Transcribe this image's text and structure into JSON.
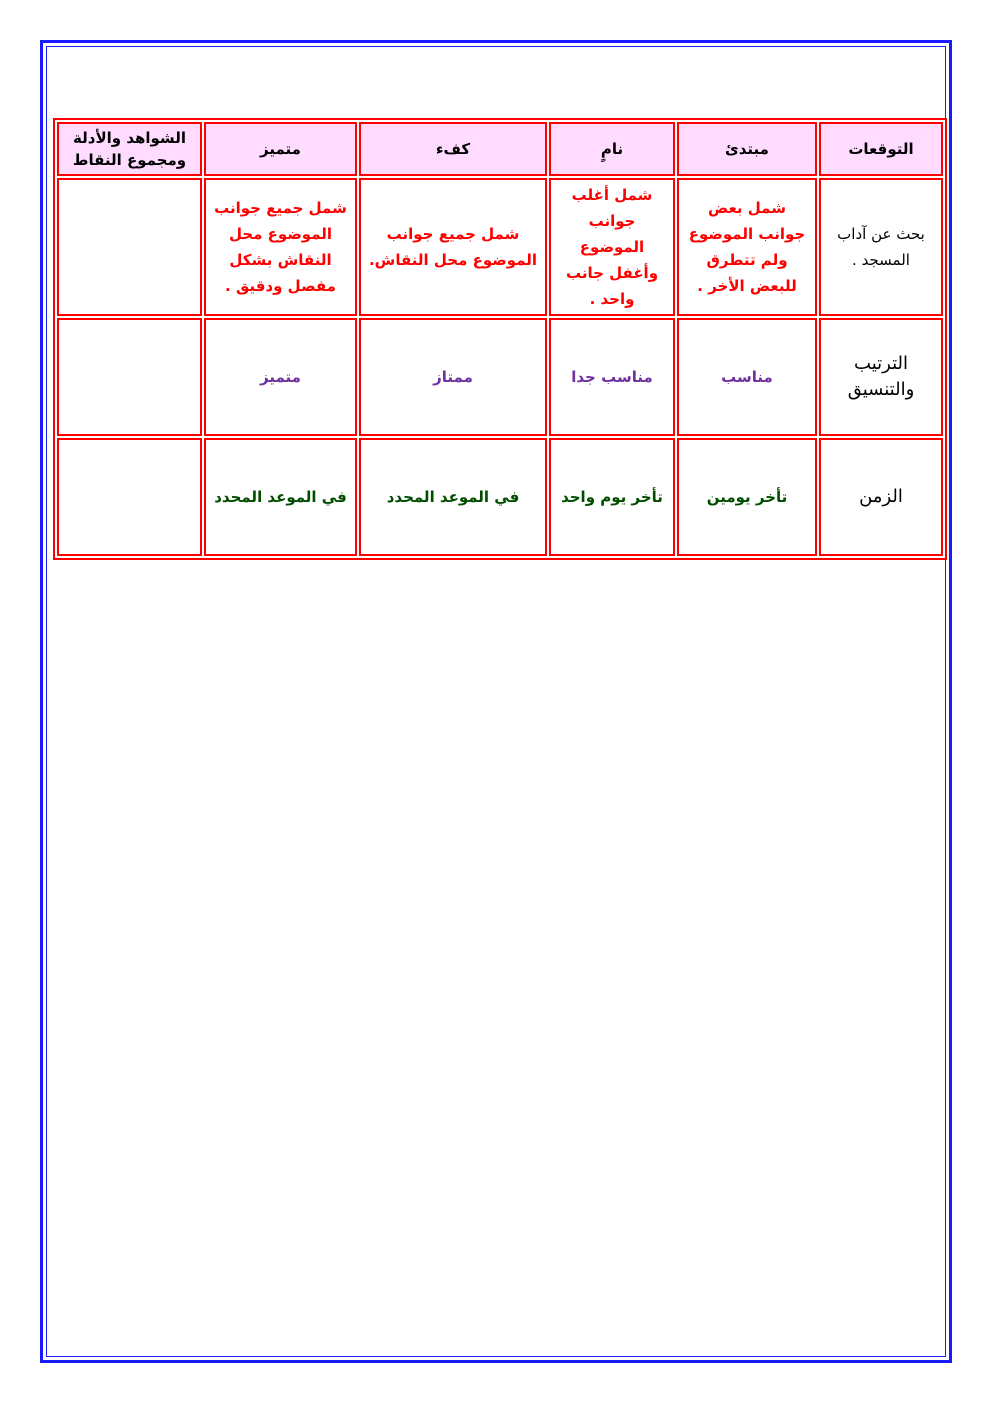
{
  "table": {
    "headers": [
      "التوقعات",
      "مبتدئ",
      "نامٍ",
      "كفء",
      "متميز",
      "الشواهد والأدلة ومجموع النقاط"
    ],
    "rows": [
      {
        "criterion": "بحث عن آداب المسجد .",
        "cells": [
          "شمل بعض جوانب الموضوع ولم تتطرق للبعض الأخر .",
          "شمل أغلب جوانب الموضوع وأغفل جانب واحد .",
          "شمل جميع جوانب الموضوع محل النقاش.",
          "شمل جميع جوانب الموضوع محل النقاش بشكل مفصل ودقيق ."
        ],
        "evidence": "",
        "color": "#ff0000"
      },
      {
        "criterion": "الترتيب والتنسيق",
        "cells": [
          "مناسب",
          "مناسب جدا",
          "ممتاز",
          "متميز"
        ],
        "evidence": "",
        "color": "#7030a0"
      },
      {
        "criterion": "الزمن",
        "cells": [
          "تأخر يومين",
          "تأخر يوم واحد",
          "في الموعد المحدد",
          "في الموعد المحدد"
        ],
        "evidence": "",
        "color": "#004d00"
      }
    ]
  },
  "colors": {
    "frame": "#1a1aff",
    "table_border": "#ff0000",
    "header_bg": "#ffdcff"
  }
}
